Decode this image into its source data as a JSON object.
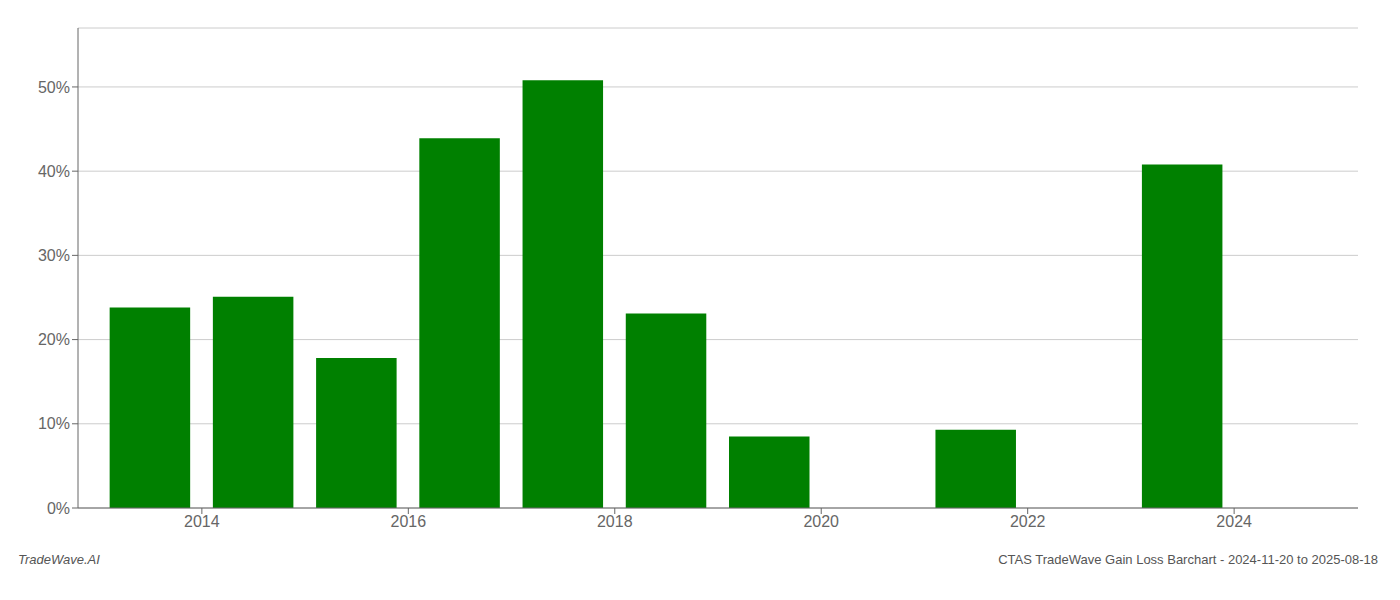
{
  "chart_data": {
    "type": "bar",
    "x": [
      2013.5,
      2014.5,
      2015.5,
      2016.5,
      2017.5,
      2018.5,
      2019.5,
      2021.5,
      2023.5
    ],
    "values": [
      0.238,
      0.251,
      0.178,
      0.439,
      0.508,
      0.231,
      0.085,
      0.093,
      0.408
    ],
    "color": "#008000",
    "xlim": [
      2012.8,
      2025.2
    ],
    "xticks": [
      2014,
      2016,
      2018,
      2020,
      2022,
      2024
    ],
    "ylim": [
      0,
      0.57
    ],
    "yticks": [
      {
        "value": 0.0,
        "label": "0%"
      },
      {
        "value": 0.1,
        "label": "10%"
      },
      {
        "value": 0.2,
        "label": "20%"
      },
      {
        "value": 0.3,
        "label": "30%"
      },
      {
        "value": 0.4,
        "label": "40%"
      },
      {
        "value": 0.5,
        "label": "50%"
      }
    ],
    "grid": true,
    "annotations": [
      "TradeWave.AI",
      "CTAS TradeWave Gain Loss Barchart - 2024-11-20 to 2025-08-18"
    ]
  }
}
